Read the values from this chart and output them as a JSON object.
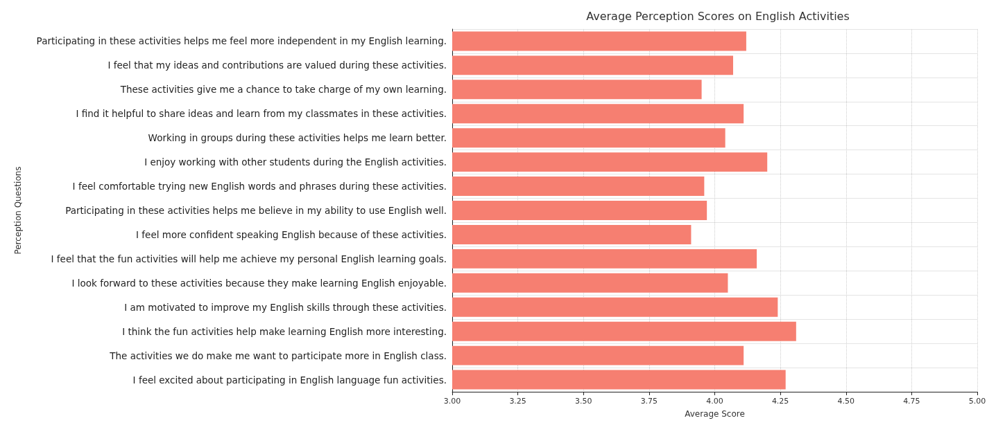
{
  "chart_data": {
    "type": "bar",
    "orientation": "horizontal",
    "title": "Average Perception Scores on English Activities",
    "xlabel": "Average Score",
    "ylabel": "Perception Questions",
    "categories": [
      "Participating in these activities helps me feel more independent in my English learning.",
      "I feel that my ideas and contributions are valued during these activities.",
      "These activities give me a chance to take charge of my own learning.",
      "I find it helpful to share ideas and learn from my classmates in these activities.",
      "Working in groups during these activities helps me learn better.",
      "I enjoy working with other students during the English activities.",
      "I feel comfortable trying new English words and phrases during these activities.",
      "Participating in these activities helps me believe in my ability to use English well.",
      "I feel more confident speaking English because of these activities.",
      "I feel that the fun activities will help me achieve my personal English learning goals.",
      "I look forward to these activities because they make learning English enjoyable.",
      "I am motivated to improve my English skills through these activities.",
      "I think the fun activities help make learning English more interesting.",
      "The activities we do make me want to participate more in English class.",
      "I feel excited about participating in English language fun activities."
    ],
    "values": [
      4.12,
      4.07,
      3.95,
      4.11,
      4.04,
      4.2,
      3.96,
      3.97,
      3.91,
      4.16,
      4.05,
      4.24,
      4.31,
      4.11,
      4.27
    ],
    "color": "#f67f71",
    "xlim": [
      3,
      5
    ],
    "xticks": [
      {
        "value": 3,
        "label": "3.00"
      },
      {
        "value": 3.25,
        "label": "3.25"
      },
      {
        "value": 3.5,
        "label": "3.50"
      },
      {
        "value": 3.75,
        "label": "3.75"
      },
      {
        "value": 4,
        "label": "4.00"
      },
      {
        "value": 4.25,
        "label": "4.25"
      },
      {
        "value": 4.5,
        "label": "4.50"
      },
      {
        "value": 4.75,
        "label": "4.75"
      },
      {
        "value": 5,
        "label": "5.00"
      }
    ],
    "grid": true
  }
}
